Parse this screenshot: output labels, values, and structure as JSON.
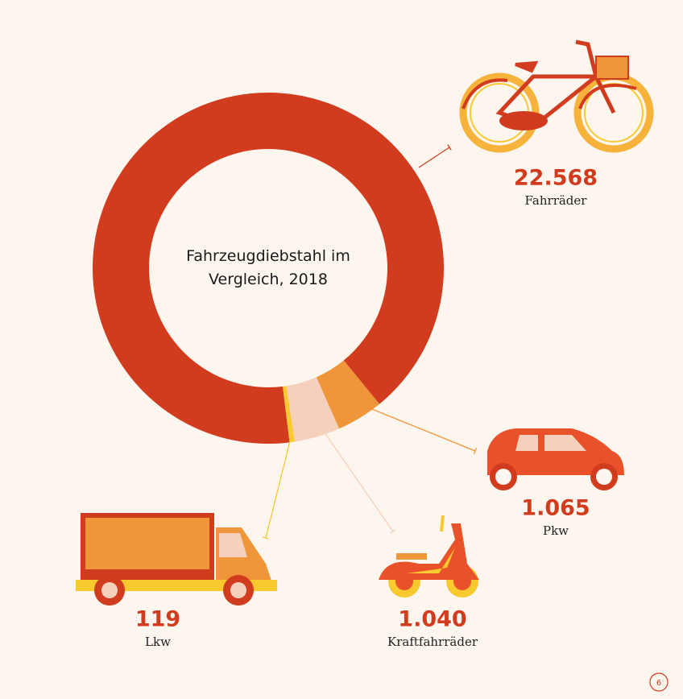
{
  "chart_data": {
    "type": "donut",
    "title": "Fahrzeugdiebstahl im Vergleich, 2018",
    "categories": [
      "Fahrräder",
      "Pkw",
      "Kraftfahrräder",
      "Lkw"
    ],
    "values": [
      22568,
      1065,
      1040,
      119
    ],
    "value_labels": [
      "22.568",
      "1.065",
      "1.040",
      "119"
    ],
    "colors": [
      "#d23c1e",
      "#f0963a",
      "#f5d0bc",
      "#f9c930"
    ]
  },
  "page_number": "6"
}
